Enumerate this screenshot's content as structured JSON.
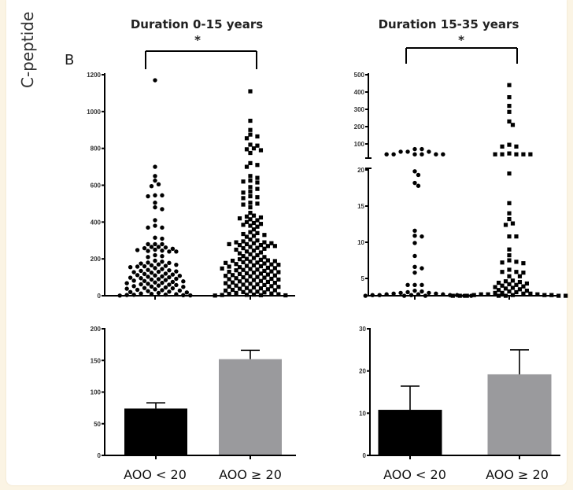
{
  "figure": {
    "ylabel": "C-peptide",
    "panel_label": "B"
  },
  "chart_data": [
    {
      "type": "scatter",
      "title": "Duration 0-15 years",
      "significance": "*",
      "categories": [
        "AOO < 20",
        "AOO ≥ 20"
      ],
      "ylim": [
        0,
        1200
      ],
      "yticks": [
        0,
        200,
        400,
        600,
        800,
        1000,
        1200
      ],
      "markers": [
        "circle",
        "square"
      ],
      "series": [
        {
          "values": [
            1170,
            700,
            650,
            625,
            605,
            595,
            545,
            545,
            540,
            505,
            480,
            470,
            410,
            380,
            370,
            370,
            315,
            310,
            280,
            280,
            280,
            265,
            265,
            262,
            258,
            255,
            250,
            248,
            245,
            243,
            240,
            240,
            220,
            215,
            210,
            190,
            185,
            180,
            178,
            175,
            170,
            168,
            165,
            162,
            160,
            158,
            155,
            150,
            145,
            140,
            138,
            135,
            132,
            130,
            128,
            125,
            120,
            118,
            115,
            112,
            110,
            108,
            105,
            103,
            100,
            98,
            95,
            92,
            90,
            88,
            85,
            82,
            80,
            78,
            75,
            72,
            70,
            68,
            65,
            62,
            60,
            58,
            55,
            52,
            50,
            48,
            45,
            42,
            40,
            38,
            35,
            32,
            30,
            28,
            25,
            22,
            20,
            18,
            15,
            12,
            10,
            8,
            6,
            5,
            4,
            3,
            2,
            1
          ]
        },
        {
          "values": [
            1110,
            950,
            900,
            875,
            865,
            855,
            820,
            815,
            800,
            795,
            790,
            775,
            720,
            710,
            700,
            650,
            640,
            625,
            620,
            615,
            590,
            580,
            565,
            560,
            540,
            535,
            530,
            505,
            500,
            495,
            480,
            450,
            435,
            430,
            425,
            420,
            415,
            410,
            400,
            395,
            390,
            385,
            380,
            375,
            360,
            345,
            340,
            335,
            330,
            325,
            320,
            305,
            300,
            295,
            290,
            290,
            285,
            285,
            280,
            280,
            275,
            275,
            270,
            270,
            265,
            260,
            258,
            255,
            250,
            245,
            240,
            235,
            230,
            225,
            220,
            215,
            210,
            205,
            200,
            198,
            195,
            192,
            190,
            188,
            185,
            182,
            180,
            178,
            175,
            172,
            170,
            168,
            165,
            162,
            160,
            158,
            155,
            152,
            150,
            148,
            145,
            142,
            140,
            138,
            135,
            132,
            130,
            128,
            125,
            122,
            120,
            118,
            115,
            112,
            110,
            108,
            105,
            102,
            100,
            98,
            95,
            92,
            90,
            88,
            85,
            82,
            80,
            78,
            75,
            72,
            70,
            68,
            65,
            62,
            60,
            58,
            55,
            52,
            50,
            48,
            45,
            42,
            40,
            38,
            35,
            32,
            30,
            28,
            25,
            22,
            20,
            18,
            15,
            12,
            10,
            8,
            6,
            5,
            4,
            3,
            2,
            1
          ]
        }
      ]
    },
    {
      "type": "scatter",
      "title": "Duration 15-35 years",
      "significance": "*",
      "categories": [
        "AOO < 20",
        "AOO ≥ 20"
      ],
      "axis_break": true,
      "ylim_upper": [
        20,
        500
      ],
      "ylim_lower": [
        2.5,
        20
      ],
      "yticks_upper": [
        100,
        200,
        300,
        400,
        500
      ],
      "yticks_lower": [
        5,
        10,
        15,
        20
      ],
      "markers": [
        "circle",
        "square"
      ],
      "series": [
        {
          "values": [
            70,
            70,
            55,
            55,
            55,
            40,
            40,
            40,
            40,
            40,
            40,
            19.8,
            19.3,
            18.2,
            17.8,
            11.6,
            10.9,
            10.8,
            9.9,
            8.1,
            6.6,
            6.4,
            5.8,
            4.1,
            4.1,
            4.1,
            3.3,
            3.2,
            3.1,
            3.0,
            3.0,
            2.9,
            2.9,
            2.8,
            2.8,
            2.8,
            2.7,
            2.7,
            2.7,
            2.7,
            2.7,
            2.6,
            2.6,
            2.6,
            2.6,
            2.6
          ]
        },
        {
          "values": [
            440,
            370,
            320,
            285,
            230,
            210,
            95,
            85,
            85,
            45,
            40,
            40,
            40,
            40,
            40,
            19.5,
            15.4,
            14,
            13.2,
            12.6,
            12.4,
            10.8,
            10.8,
            9,
            8.2,
            7.5,
            7.3,
            7.2,
            7.1,
            6.2,
            5.9,
            5.9,
            5.8,
            5.3,
            5.3,
            4.7,
            4.6,
            4.5,
            4.4,
            4.3,
            4.2,
            4.1,
            4.0,
            3.9,
            3.8,
            3.7,
            3.6,
            3.5,
            3.4,
            3.3,
            3.2,
            3.1,
            3.0,
            3.0,
            2.9,
            2.9,
            2.8,
            2.8,
            2.8,
            2.7,
            2.7,
            2.7,
            2.7,
            2.6,
            2.6,
            2.6,
            2.6,
            2.6,
            2.6,
            2.6
          ]
        }
      ]
    },
    {
      "type": "bar",
      "categories": [
        "AOO < 20",
        "AOO ≥ 20"
      ],
      "values": [
        74,
        152
      ],
      "error_upper": [
        83,
        166
      ],
      "colors": [
        "#000000",
        "#9a9a9d"
      ],
      "ylim": [
        0,
        200
      ],
      "yticks": [
        0,
        50,
        100,
        150,
        200
      ]
    },
    {
      "type": "bar",
      "categories": [
        "AOO < 20",
        "AOO ≥ 20"
      ],
      "values": [
        10.8,
        19.2
      ],
      "error_upper": [
        16.4,
        25
      ],
      "colors": [
        "#000000",
        "#9a9a9d"
      ],
      "ylim": [
        0,
        30
      ],
      "yticks": [
        0,
        10,
        20,
        30
      ]
    }
  ]
}
